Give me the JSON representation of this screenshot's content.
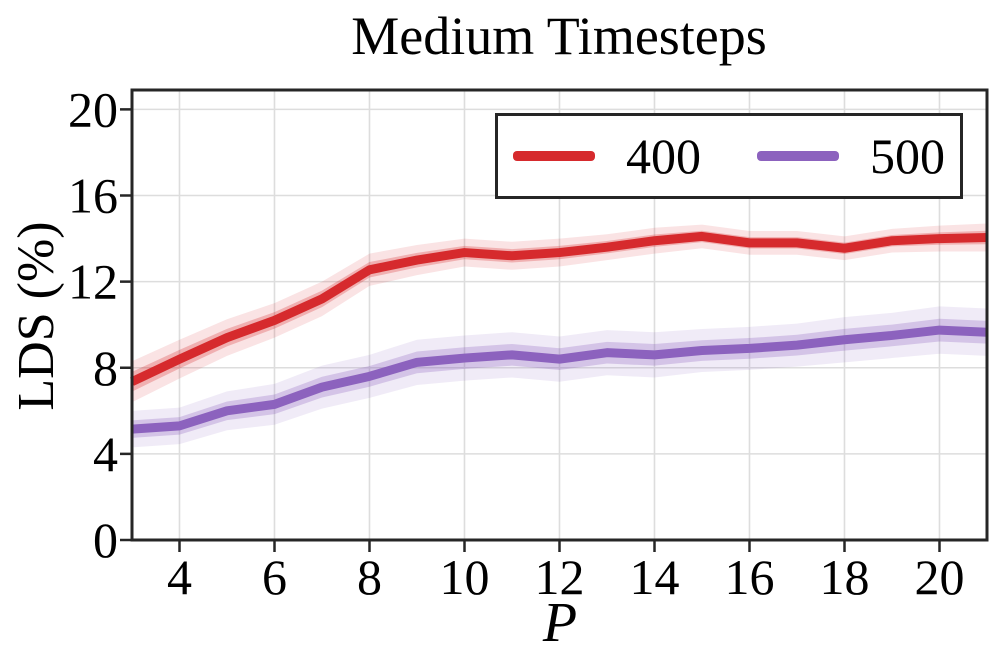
{
  "chart_data": {
    "type": "line",
    "title": "Medium Timesteps",
    "xlabel": "P",
    "ylabel": "LDS (%)",
    "x": [
      3,
      4,
      5,
      6,
      7,
      8,
      9,
      10,
      11,
      12,
      13,
      14,
      15,
      16,
      17,
      18,
      19,
      20,
      21
    ],
    "xticks": [
      4,
      6,
      8,
      10,
      12,
      14,
      16,
      18,
      20
    ],
    "yticks": [
      0,
      4,
      8,
      12,
      16,
      20
    ],
    "xlim": [
      3,
      21
    ],
    "ylim": [
      0,
      20.9
    ],
    "grid": true,
    "grid_color": "#dddddd",
    "axis_color": "#262626",
    "legend_position": "upper right",
    "band_inner_ratio": 0.48,
    "series": [
      {
        "name": "400",
        "color": "#d62a2d",
        "values": [
          7.35,
          8.4,
          9.4,
          10.2,
          11.2,
          12.55,
          13.0,
          13.35,
          13.2,
          13.35,
          13.6,
          13.9,
          14.1,
          13.8,
          13.8,
          13.55,
          13.9,
          14.0,
          14.05
        ],
        "band_outer": [
          0.95,
          0.9,
          0.85,
          0.8,
          0.8,
          0.75,
          0.7,
          0.65,
          0.65,
          0.65,
          0.6,
          0.6,
          0.55,
          0.55,
          0.55,
          0.55,
          0.55,
          0.6,
          0.65
        ],
        "band_inner_color": "rgba(214,42,45,0.28)",
        "band_outer_color": "rgba(214,42,45,0.13)"
      },
      {
        "name": "500",
        "color": "#8c62be",
        "values": [
          5.15,
          5.3,
          6.0,
          6.3,
          7.1,
          7.6,
          8.25,
          8.45,
          8.6,
          8.4,
          8.7,
          8.6,
          8.8,
          8.9,
          9.05,
          9.3,
          9.5,
          9.75,
          9.65
        ],
        "band_outer": [
          0.85,
          0.85,
          0.9,
          0.95,
          1.0,
          1.0,
          1.05,
          1.05,
          1.05,
          1.05,
          1.05,
          1.05,
          1.0,
          1.0,
          1.0,
          1.05,
          1.05,
          1.1,
          1.1
        ],
        "band_inner_color": "rgba(140,98,190,0.28)",
        "band_outer_color": "rgba(140,98,190,0.13)"
      }
    ]
  }
}
